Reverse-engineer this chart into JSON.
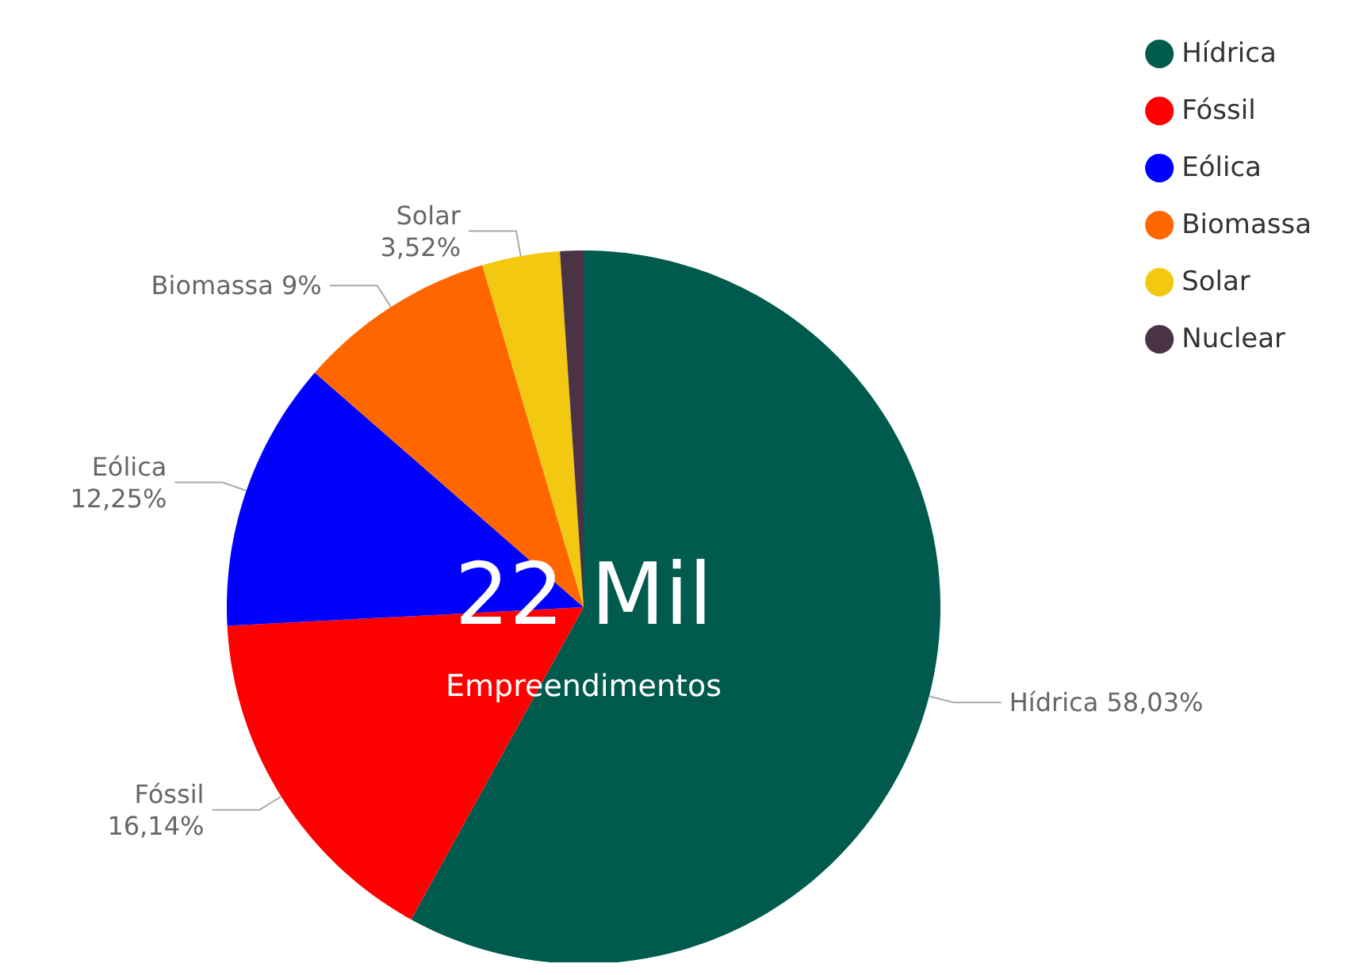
{
  "chart_data": {
    "type": "pie",
    "categories": [
      "Hídrica",
      "Fóssil",
      "Eólica",
      "Biomassa",
      "Solar",
      "Nuclear"
    ],
    "values": [
      58.03,
      16.14,
      12.25,
      9,
      3.52,
      1.06
    ],
    "colors": [
      "#005a4e",
      "#ff0000",
      "#0000ff",
      "#ff6600",
      "#f2c811",
      "#4a3345"
    ],
    "value_labels": [
      "Hídrica 58,03%",
      "Fóssil\n16,14%",
      "Eólica\n12,25%",
      "Biomassa 9%",
      "Solar\n3,52%",
      null
    ],
    "annotations": [
      "22 Mil",
      "Empreendimentos"
    ],
    "legend": "top right"
  }
}
